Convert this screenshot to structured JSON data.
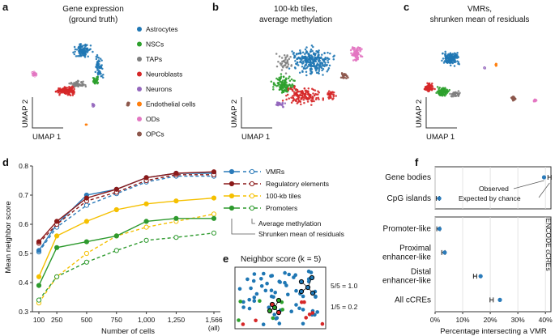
{
  "panels": {
    "a": {
      "label": "a",
      "title": [
        "Gene expression",
        "(ground truth)"
      ],
      "xlabel": "UMAP 1",
      "ylabel": "UMAP 2"
    },
    "b": {
      "label": "b",
      "title": [
        "100-kb tiles,",
        "average methylation"
      ],
      "xlabel": "UMAP 1",
      "ylabel": "UMAP 2"
    },
    "c": {
      "label": "c",
      "title": [
        "VMRs,",
        "shrunken mean of residuals"
      ],
      "xlabel": "UMAP 1",
      "ylabel": "UMAP 2"
    },
    "d": {
      "label": "d"
    },
    "e": {
      "label": "e",
      "title": "Neighbor score (k = 5)",
      "score_high": "5/5 = 1.0",
      "score_low": "1/5 = 0.2"
    },
    "f": {
      "label": "f",
      "encode_label": "ENCODE cCREs",
      "legend_observed": "Observed",
      "legend_expected": "Expected by chance"
    }
  },
  "cell_types": [
    {
      "name": "Astrocytes",
      "color": "#1f77b4"
    },
    {
      "name": "NSCs",
      "color": "#2ca02c"
    },
    {
      "name": "TAPs",
      "color": "#7f7f7f"
    },
    {
      "name": "Neuroblasts",
      "color": "#d62728"
    },
    {
      "name": "Neurons",
      "color": "#9467bd"
    },
    {
      "name": "Endothelial cells",
      "color": "#ff7f0e"
    },
    {
      "name": "ODs",
      "color": "#e377c2"
    },
    {
      "name": "OPCs",
      "color": "#8c564b"
    }
  ],
  "chart_data": [
    {
      "type": "line",
      "panel": "d",
      "xlabel": "Number of cells",
      "ylabel": "Mean neighbor score",
      "x": [
        100,
        250,
        500,
        750,
        1000,
        1250,
        1566
      ],
      "x_tick_labels": [
        "100",
        "250",
        "500",
        "750",
        "1,000",
        "1,250",
        "1,566"
      ],
      "x_tick_sub": "(all)",
      "ylim": [
        0.3,
        0.8
      ],
      "yticks": [
        "0.3",
        "0.4",
        "0.5",
        "0.6",
        "0.7",
        "0.8"
      ],
      "series": [
        {
          "name": "VMRs",
          "color": "#2b7bba",
          "solid": [
            0.51,
            0.6,
            0.7,
            0.72,
            0.76,
            0.775,
            0.775
          ],
          "dashed": [
            0.505,
            0.59,
            0.665,
            0.705,
            0.745,
            0.765,
            0.765
          ]
        },
        {
          "name": "Regulatory elements",
          "color": "#8b1a1a",
          "solid": [
            0.54,
            0.61,
            0.69,
            0.72,
            0.76,
            0.775,
            0.78
          ],
          "dashed": [
            0.535,
            0.6,
            0.68,
            0.71,
            0.75,
            0.77,
            0.77
          ]
        },
        {
          "name": "100-kb tiles",
          "color": "#f5c000",
          "solid": [
            0.42,
            0.56,
            0.61,
            0.65,
            0.67,
            0.68,
            0.69
          ],
          "dashed": [
            0.33,
            0.42,
            0.5,
            0.56,
            0.59,
            0.61,
            0.635
          ]
        },
        {
          "name": "Promoters",
          "color": "#2e9a2e",
          "solid": [
            0.39,
            0.52,
            0.54,
            0.56,
            0.61,
            0.62,
            0.62
          ],
          "dashed": [
            0.34,
            0.42,
            0.47,
            0.51,
            0.545,
            0.555,
            0.57
          ]
        }
      ],
      "legend_solid": "Average methylation",
      "legend_dashed": "Shrunken mean of residuals"
    },
    {
      "type": "scatter",
      "panel": "f",
      "xlabel": "Percentage intersecting a VMR",
      "xlim": [
        0,
        42
      ],
      "x_tick_labels": [
        "0%",
        "10%",
        "20%",
        "30%",
        "40%"
      ],
      "x_ticks": [
        0,
        10,
        20,
        30,
        40
      ],
      "groups": [
        {
          "rows": [
            {
              "label": [
                "Gene bodies"
              ],
              "observed": 39.5,
              "expected": 41.5
            },
            {
              "label": [
                "CpG islands"
              ],
              "observed": 1.5,
              "expected": 1.0
            }
          ]
        },
        {
          "rows": [
            {
              "label": [
                "Promoter-like"
              ],
              "observed": 1.6,
              "expected": 1.2
            },
            {
              "label": [
                "Proximal",
                "enhancer-like"
              ],
              "observed": 3.5,
              "expected": 3.0
            },
            {
              "label": [
                "Distal",
                "enhancer-like"
              ],
              "observed": 16.5,
              "expected": 14.5
            },
            {
              "label": [
                "All cCREs"
              ],
              "observed": 23.5,
              "expected": 20.5
            }
          ]
        }
      ]
    }
  ]
}
